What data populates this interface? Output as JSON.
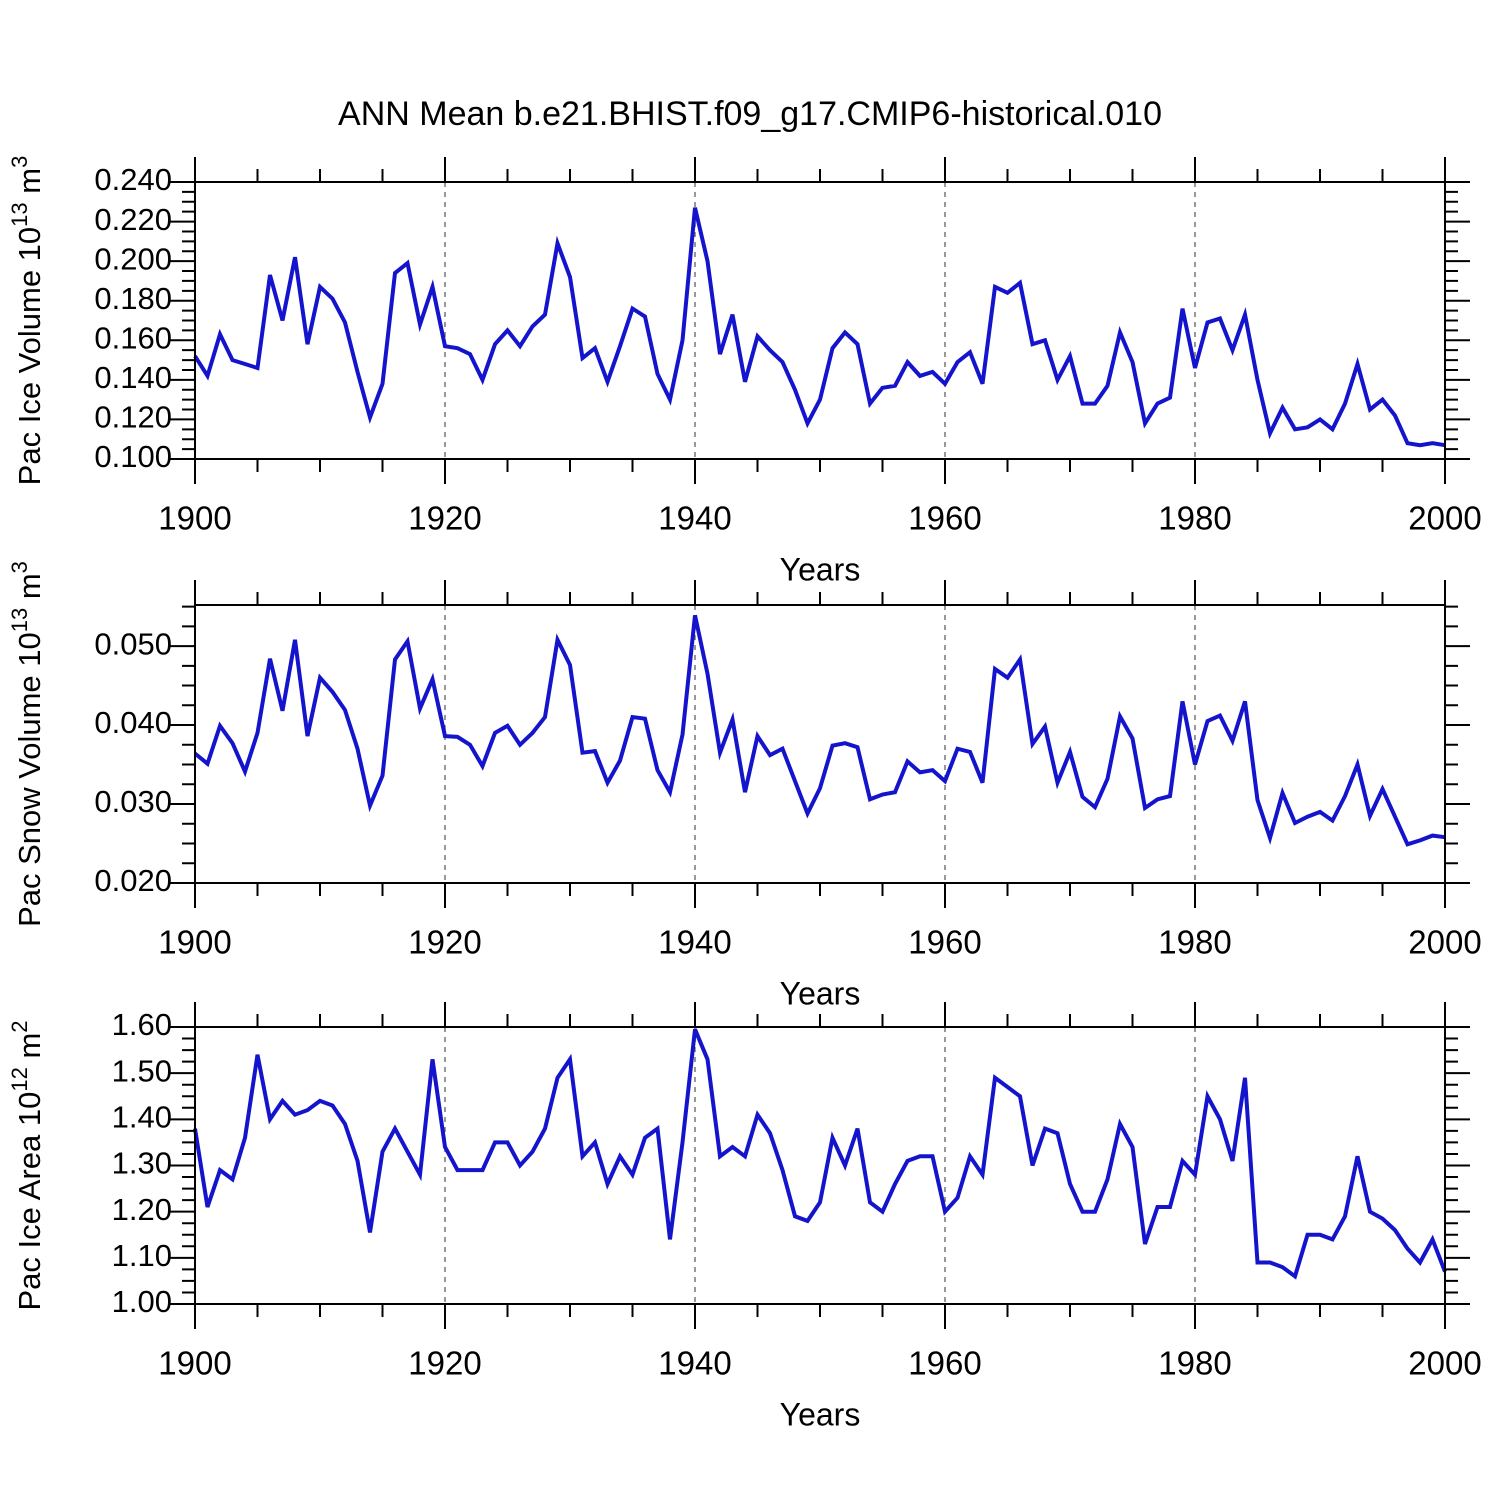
{
  "title": "ANN Mean b.e21.BHIST.f09_g17.CMIP6-historical.010",
  "chart_data": {
    "type": "line",
    "title": "ANN Mean b.e21.BHIST.f09_g17.CMIP6-historical.010",
    "xlabel": "Years",
    "legend": "none",
    "x_range": [
      1900,
      2000
    ],
    "x_major_ticks": [
      1900,
      1920,
      1940,
      1960,
      1980,
      2000
    ],
    "x_major_tick_labels": [
      "1900",
      "1920",
      "1940",
      "1960",
      "1980",
      "2000"
    ],
    "x_minor_step": 5,
    "x_gridlines": [
      1920,
      1940,
      1960,
      1980
    ],
    "line_color": "#1414CD",
    "grid_color": "#777777",
    "axis_color": "#000000",
    "background_color": "#FFFFFF",
    "years": [
      1900,
      1901,
      1902,
      1903,
      1904,
      1905,
      1906,
      1907,
      1908,
      1909,
      1910,
      1911,
      1912,
      1913,
      1914,
      1915,
      1916,
      1917,
      1918,
      1919,
      1920,
      1921,
      1922,
      1923,
      1924,
      1925,
      1926,
      1927,
      1928,
      1929,
      1930,
      1931,
      1932,
      1933,
      1934,
      1935,
      1936,
      1937,
      1938,
      1939,
      1940,
      1941,
      1942,
      1943,
      1944,
      1945,
      1946,
      1947,
      1948,
      1949,
      1950,
      1951,
      1952,
      1953,
      1954,
      1955,
      1956,
      1957,
      1958,
      1959,
      1960,
      1961,
      1962,
      1963,
      1964,
      1965,
      1966,
      1967,
      1968,
      1969,
      1970,
      1971,
      1972,
      1973,
      1974,
      1975,
      1976,
      1977,
      1978,
      1979,
      1980,
      1981,
      1982,
      1983,
      1984,
      1985,
      1986,
      1987,
      1988,
      1989,
      1990,
      1991,
      1992,
      1993,
      1994,
      1995,
      1996,
      1997,
      1998,
      1999,
      2000
    ],
    "panels": [
      {
        "id": "pac-ice-volume",
        "ylabel": "Pac Ice Volume 10¹³ m³",
        "ylabel_parts": {
          "prefix": "Pac Ice Volume 10",
          "sup1": "13",
          "mid": " m",
          "sup2": "3"
        },
        "ylim": [
          0.1,
          0.24
        ],
        "ytick_values": [
          0.1,
          0.12,
          0.14,
          0.16,
          0.18,
          0.2,
          0.22,
          0.24
        ],
        "ytick_labels": [
          "0.100",
          "0.120",
          "0.140",
          "0.160",
          "0.180",
          "0.200",
          "0.220",
          "0.240"
        ],
        "y_minor_step": 0.005,
        "values": [
          0.152,
          0.142,
          0.163,
          0.15,
          0.148,
          0.146,
          0.193,
          0.17,
          0.202,
          0.158,
          0.187,
          0.181,
          0.169,
          0.144,
          0.121,
          0.138,
          0.194,
          0.199,
          0.168,
          0.187,
          0.157,
          0.156,
          0.153,
          0.14,
          0.158,
          0.165,
          0.157,
          0.167,
          0.173,
          0.209,
          0.192,
          0.151,
          0.156,
          0.139,
          0.157,
          0.176,
          0.172,
          0.143,
          0.13,
          0.16,
          0.227,
          0.2,
          0.153,
          0.173,
          0.139,
          0.162,
          0.155,
          0.149,
          0.135,
          0.118,
          0.13,
          0.156,
          0.164,
          0.158,
          0.128,
          0.136,
          0.137,
          0.149,
          0.142,
          0.144,
          0.138,
          0.149,
          0.154,
          0.138,
          0.187,
          0.184,
          0.189,
          0.158,
          0.16,
          0.14,
          0.152,
          0.128,
          0.128,
          0.137,
          0.164,
          0.149,
          0.118,
          0.128,
          0.131,
          0.176,
          0.146,
          0.169,
          0.171,
          0.155,
          0.173,
          0.14,
          0.113,
          0.126,
          0.115,
          0.116,
          0.12,
          0.115,
          0.128,
          0.148,
          0.125,
          0.13,
          0.122,
          0.108,
          0.107,
          0.108,
          0.107
        ]
      },
      {
        "id": "pac-snow-volume",
        "ylabel": "Pac Snow Volume 10¹³ m³",
        "ylabel_parts": {
          "prefix": "Pac Snow Volume 10",
          "sup1": "13",
          "mid": " m",
          "sup2": "3"
        },
        "ylim": [
          0.02,
          0.0552
        ],
        "ytick_values": [
          0.02,
          0.03,
          0.04,
          0.05
        ],
        "ytick_labels": [
          "0.020",
          "0.030",
          "0.040",
          "0.050"
        ],
        "y_minor_step": 0.0025,
        "values": [
          0.0364,
          0.0351,
          0.0399,
          0.0377,
          0.0341,
          0.039,
          0.0484,
          0.0418,
          0.0508,
          0.0386,
          0.046,
          0.0442,
          0.0419,
          0.037,
          0.0298,
          0.0336,
          0.0483,
          0.0506,
          0.0421,
          0.0458,
          0.0386,
          0.0385,
          0.0375,
          0.0348,
          0.039,
          0.0399,
          0.0375,
          0.039,
          0.041,
          0.0508,
          0.0476,
          0.0365,
          0.0367,
          0.0327,
          0.0355,
          0.041,
          0.0408,
          0.0343,
          0.0315,
          0.0388,
          0.0539,
          0.0465,
          0.0365,
          0.0407,
          0.0315,
          0.0386,
          0.0362,
          0.037,
          0.0329,
          0.0288,
          0.032,
          0.0374,
          0.0377,
          0.0372,
          0.0306,
          0.0312,
          0.0315,
          0.0354,
          0.034,
          0.0343,
          0.0329,
          0.037,
          0.0366,
          0.0327,
          0.0471,
          0.046,
          0.0483,
          0.0376,
          0.0398,
          0.0327,
          0.0366,
          0.0309,
          0.0296,
          0.0332,
          0.0411,
          0.0383,
          0.0295,
          0.0306,
          0.031,
          0.043,
          0.035,
          0.0405,
          0.0412,
          0.038,
          0.043,
          0.0305,
          0.0257,
          0.0314,
          0.0276,
          0.0284,
          0.029,
          0.0279,
          0.031,
          0.035,
          0.0285,
          0.0319,
          0.0284,
          0.0249,
          0.0254,
          0.026,
          0.0258
        ]
      },
      {
        "id": "pac-ice-area",
        "ylabel": "Pac Ice Area 10¹² m²",
        "ylabel_parts": {
          "prefix": "Pac Ice Area 10",
          "sup1": "12",
          "mid": " m",
          "sup2": "2"
        },
        "ylim": [
          1.0,
          1.6
        ],
        "ytick_values": [
          1.0,
          1.1,
          1.2,
          1.3,
          1.4,
          1.5,
          1.6
        ],
        "ytick_labels": [
          "1.00",
          "1.10",
          "1.20",
          "1.30",
          "1.40",
          "1.50",
          "1.60"
        ],
        "y_minor_step": 0.025,
        "values": [
          1.38,
          1.21,
          1.29,
          1.27,
          1.36,
          1.54,
          1.4,
          1.44,
          1.41,
          1.42,
          1.44,
          1.43,
          1.39,
          1.31,
          1.155,
          1.33,
          1.38,
          1.33,
          1.28,
          1.53,
          1.34,
          1.29,
          1.29,
          1.29,
          1.35,
          1.35,
          1.3,
          1.33,
          1.38,
          1.49,
          1.53,
          1.32,
          1.35,
          1.26,
          1.32,
          1.28,
          1.36,
          1.38,
          1.14,
          1.35,
          1.595,
          1.53,
          1.32,
          1.34,
          1.32,
          1.41,
          1.37,
          1.29,
          1.19,
          1.18,
          1.22,
          1.36,
          1.3,
          1.38,
          1.22,
          1.2,
          1.26,
          1.31,
          1.32,
          1.32,
          1.2,
          1.23,
          1.32,
          1.28,
          1.49,
          1.47,
          1.45,
          1.3,
          1.38,
          1.37,
          1.26,
          1.2,
          1.2,
          1.27,
          1.39,
          1.34,
          1.13,
          1.21,
          1.21,
          1.31,
          1.28,
          1.45,
          1.4,
          1.31,
          1.49,
          1.09,
          1.09,
          1.08,
          1.06,
          1.15,
          1.15,
          1.14,
          1.19,
          1.32,
          1.2,
          1.185,
          1.16,
          1.12,
          1.09,
          1.14,
          1.07
        ]
      }
    ]
  }
}
